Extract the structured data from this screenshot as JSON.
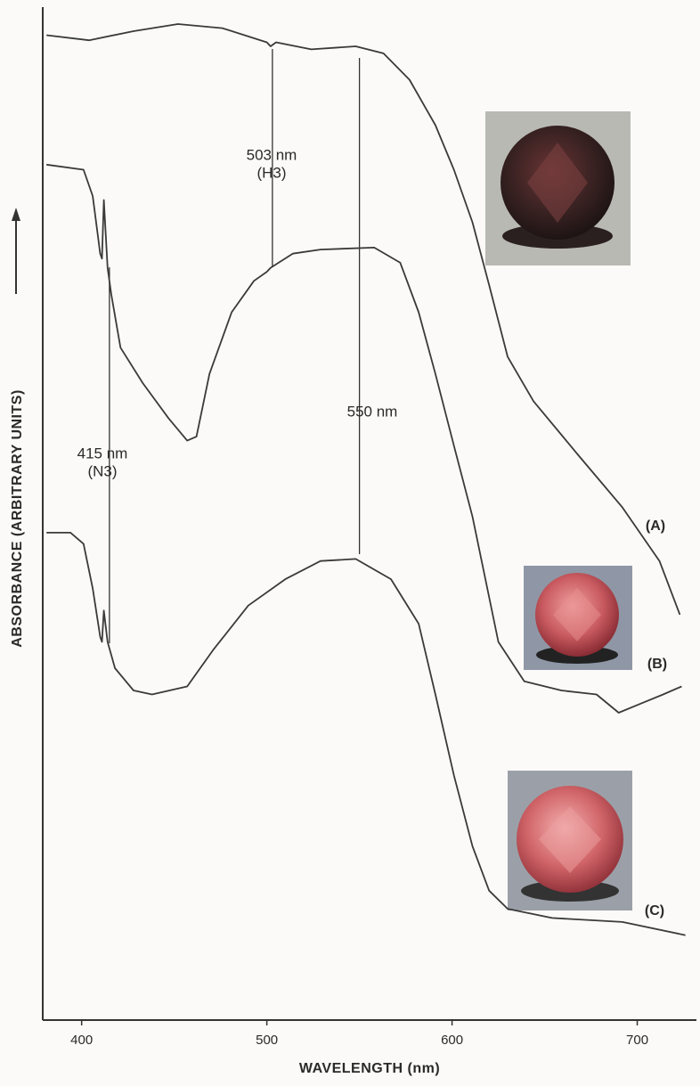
{
  "chart_data": {
    "type": "line",
    "x_label": "WAVELENGTH (nm)",
    "y_label": "ABSORBANCE (ARBITRARY UNITS)",
    "xlim": [
      379,
      731
    ],
    "ylim": [
      0,
      100
    ],
    "xticks": [
      400,
      500,
      600,
      700
    ],
    "series": [
      {
        "name": "(A)",
        "color": "#3a3a3a",
        "x": [
          381,
          404,
          428,
          452,
          476,
          500,
          502,
          505,
          524,
          548,
          563,
          577,
          591,
          601,
          611,
          620,
          630,
          644,
          668,
          692,
          712,
          723
        ],
        "values": [
          97.4,
          96.9,
          97.8,
          98.5,
          98.1,
          96.7,
          96.3,
          96.7,
          96.0,
          96.3,
          95.6,
          93.0,
          88.5,
          84.1,
          78.9,
          72.7,
          65.6,
          61.2,
          55.9,
          50.7,
          45.4,
          40.1
        ]
      },
      {
        "name": "(B)",
        "color": "#3a3a3a",
        "x": [
          381,
          401,
          406,
          410,
          411,
          412,
          414,
          416,
          421,
          433,
          447,
          457,
          462,
          469,
          481,
          493,
          500,
          502,
          514,
          529,
          558,
          572,
          582,
          591,
          601,
          611,
          625,
          639,
          659,
          678,
          690,
          702,
          714,
          724
        ],
        "values": [
          84.6,
          84.1,
          81.5,
          75.8,
          75.3,
          81.1,
          74.4,
          71.8,
          66.5,
          63.0,
          59.5,
          57.3,
          57.7,
          63.9,
          70.0,
          73.1,
          74.0,
          74.4,
          75.8,
          76.2,
          76.4,
          74.9,
          70.0,
          63.9,
          56.8,
          49.8,
          37.4,
          33.5,
          32.6,
          32.2,
          30.4,
          31.3,
          32.2,
          33.0
        ]
      },
      {
        "name": "(C)",
        "color": "#3a3a3a",
        "x": [
          381,
          394,
          401,
          406,
          410,
          411,
          412,
          414,
          418,
          428,
          438,
          457,
          471,
          490,
          510,
          529,
          548,
          567,
          582,
          591,
          601,
          611,
          620,
          630,
          654,
          692,
          726
        ],
        "values": [
          48.2,
          48.2,
          47.1,
          42.7,
          37.9,
          37.4,
          40.5,
          37.4,
          34.8,
          32.6,
          32.2,
          33.0,
          36.6,
          41.0,
          43.6,
          45.4,
          45.6,
          43.6,
          39.2,
          32.2,
          24.2,
          17.2,
          12.8,
          11.0,
          10.1,
          9.7,
          8.4
        ]
      }
    ],
    "annotations": [
      {
        "label": "503 nm",
        "sublabel": "(H3)",
        "x": 503
      },
      {
        "label": "550 nm",
        "x": 550
      },
      {
        "label": "415 nm",
        "sublabel": "(N3)",
        "x": 415
      }
    ]
  }
}
